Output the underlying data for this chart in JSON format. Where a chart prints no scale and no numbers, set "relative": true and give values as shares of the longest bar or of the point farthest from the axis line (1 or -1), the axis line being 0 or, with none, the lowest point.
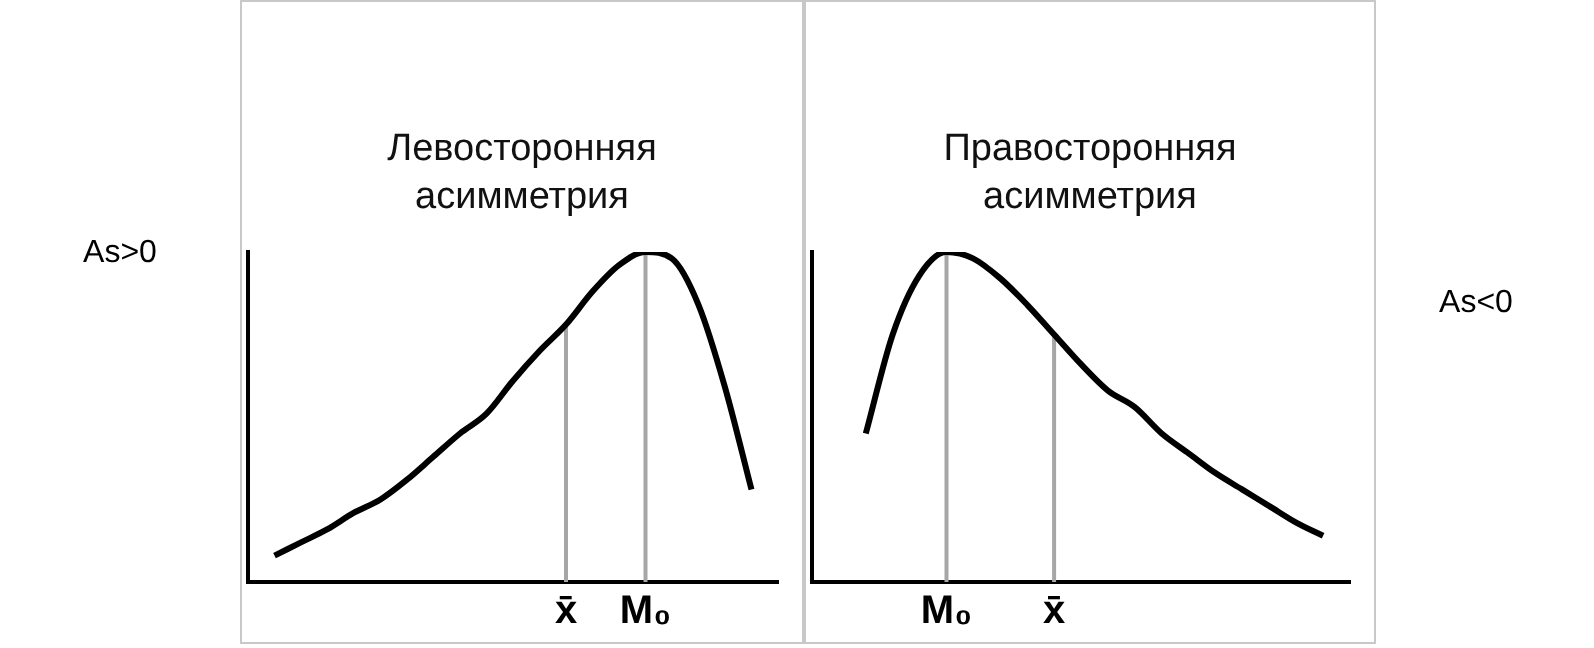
{
  "chart_data": [
    {
      "type": "line",
      "title": "Левосторонняя асимметрия",
      "annotations": [
        "As>0"
      ],
      "relative": true,
      "marker": "none",
      "line_style": "solid",
      "grid": false,
      "legend": false,
      "categories": [
        null,
        null,
        null,
        null,
        null,
        null,
        null,
        null,
        null,
        null,
        null,
        null,
        "x̄",
        null,
        null,
        "M₀",
        null,
        null,
        null,
        null,
        null
      ],
      "series": [
        {
          "color": "#000000",
          "values": [
            null,
            0.08,
            0.12,
            0.16,
            0.21,
            0.25,
            0.31,
            0.38,
            0.45,
            0.51,
            0.61,
            0.7,
            0.78,
            0.88,
            0.96,
            1.0,
            0.98,
            0.84,
            0.59,
            0.28,
            null
          ]
        }
      ],
      "ref_lines": [
        {
          "axis": "x",
          "value": "x̄",
          "color": "#a6a6a6"
        },
        {
          "axis": "x",
          "value": "M₀",
          "color": "#a6a6a6"
        }
      ]
    },
    {
      "type": "line",
      "title": "Правосторонняя асимметрия",
      "annotations": [
        "As<0"
      ],
      "relative": true,
      "marker": "none",
      "line_style": "solid",
      "grid": false,
      "legend": false,
      "categories": [
        null,
        null,
        null,
        null,
        null,
        "M₀",
        null,
        null,
        null,
        "x̄",
        null,
        null,
        null,
        null,
        null,
        null,
        null,
        null,
        null,
        null,
        null
      ],
      "series": [
        {
          "color": "#000000",
          "values": [
            null,
            null,
            0.45,
            0.75,
            0.93,
            1.0,
            0.98,
            0.92,
            0.84,
            0.75,
            0.66,
            0.58,
            0.53,
            0.45,
            0.39,
            0.33,
            0.28,
            0.23,
            0.18,
            0.14,
            null
          ]
        }
      ],
      "ref_lines": [
        {
          "axis": "x",
          "value": "M₀",
          "color": "#a6a6a6"
        },
        {
          "axis": "x",
          "value": "x̄",
          "color": "#a6a6a6"
        }
      ]
    }
  ]
}
